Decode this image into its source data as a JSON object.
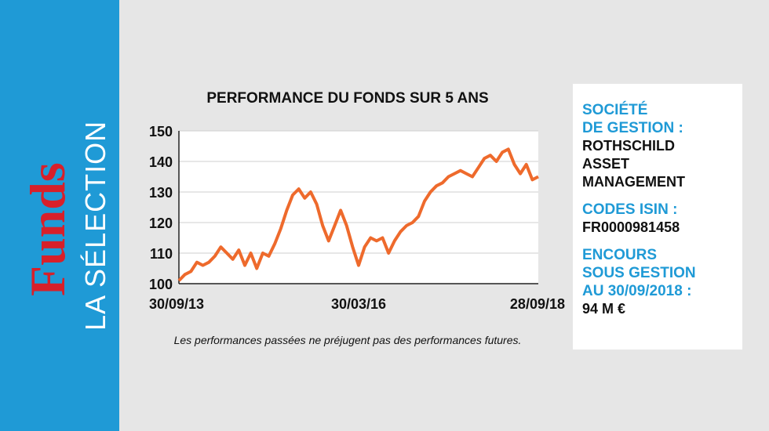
{
  "sidebar": {
    "brand": "Funds",
    "subtitle": "LA SÉLECTION"
  },
  "chart_data": {
    "type": "line",
    "title": "PERFORMANCE DU FONDS SUR 5 ANS",
    "categories": [
      "30/09/13",
      null,
      null,
      null,
      null,
      null,
      null,
      null,
      null,
      null,
      null,
      null,
      null,
      null,
      null,
      null,
      null,
      null,
      null,
      null,
      null,
      null,
      null,
      null,
      null,
      null,
      null,
      null,
      null,
      null,
      "30/03/16",
      null,
      null,
      null,
      null,
      null,
      null,
      null,
      null,
      null,
      null,
      null,
      null,
      null,
      null,
      null,
      null,
      null,
      null,
      null,
      null,
      null,
      null,
      null,
      null,
      null,
      null,
      null,
      null,
      null,
      "28/09/18"
    ],
    "values": [
      101,
      103,
      104,
      107,
      106,
      107,
      109,
      112,
      110,
      108,
      111,
      106,
      110,
      105,
      110,
      109,
      113,
      118,
      124,
      129,
      131,
      128,
      130,
      126,
      119,
      114,
      119,
      124,
      119,
      112,
      106,
      112,
      115,
      114,
      115,
      110,
      114,
      117,
      119,
      120,
      122,
      127,
      130,
      132,
      133,
      135,
      136,
      137,
      136,
      135,
      138,
      141,
      142,
      140,
      143,
      144,
      139,
      136,
      139,
      134,
      135
    ],
    "color": "#ee6a2c",
    "ylim": [
      100,
      150
    ],
    "yticks": [
      100,
      110,
      120,
      130,
      140,
      150
    ],
    "grid": true,
    "note": "Les performances passées ne préjugent pas des performances futures."
  },
  "info": {
    "items": [
      {
        "label": "SOCIÉTÉ\nDE GESTION :",
        "value": "ROTHSCHILD\nASSET\nMANAGEMENT"
      },
      {
        "label": "CODES ISIN :",
        "value": "FR0000981458"
      },
      {
        "label": "ENCOURS\nSOUS GESTION\nAU 30/09/2018 :",
        "value": "94 M €"
      }
    ]
  }
}
